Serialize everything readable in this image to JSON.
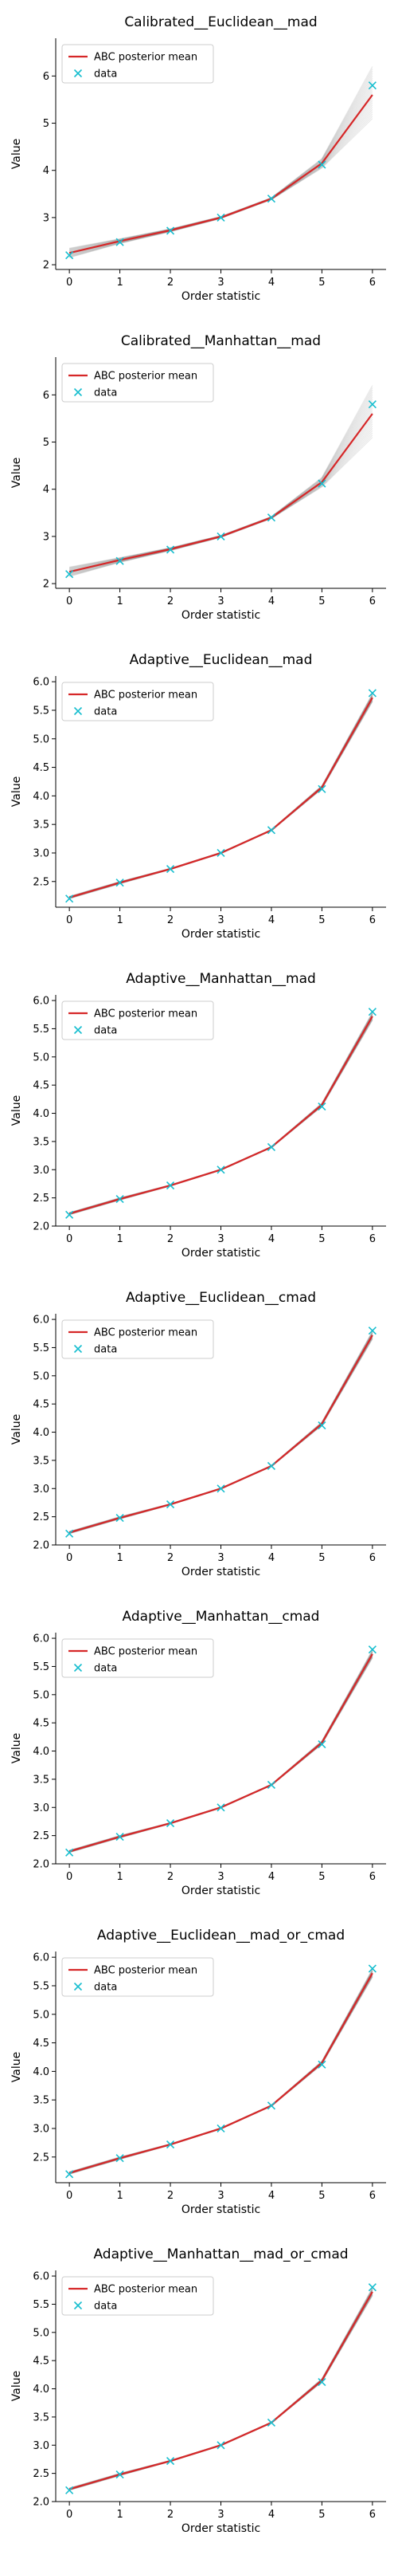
{
  "chart_data": [
    {
      "type": "line",
      "title": "Calibrated__Euclidean__mad",
      "xlabel": "Order statistic",
      "ylabel": "Value",
      "x": [
        0,
        1,
        2,
        3,
        4,
        5,
        6
      ],
      "xticks": [
        "0",
        "1",
        "2",
        "3",
        "4",
        "5",
        "6"
      ],
      "ylim": [
        1.9,
        6.8
      ],
      "yticks": [
        "2",
        "3",
        "4",
        "5",
        "6"
      ],
      "legend_position": "upper-left",
      "series": [
        {
          "name": "ABC posterior mean",
          "kind": "line",
          "color": "#d62728",
          "values": [
            2.25,
            2.5,
            2.73,
            3.0,
            3.4,
            4.15,
            5.6
          ]
        },
        {
          "name": "data",
          "kind": "markers",
          "marker": "x",
          "color": "#17becf",
          "values": [
            2.2,
            2.48,
            2.72,
            3.0,
            3.4,
            4.12,
            5.8
          ]
        }
      ],
      "posterior_band": {
        "color": "#555555",
        "lower": [
          2.15,
          2.45,
          2.7,
          2.98,
          3.38,
          4.05,
          5.1
        ],
        "upper": [
          2.35,
          2.55,
          2.76,
          3.02,
          3.42,
          4.25,
          6.2
        ]
      }
    },
    {
      "type": "line",
      "title": "Calibrated__Manhattan__mad",
      "xlabel": "Order statistic",
      "ylabel": "Value",
      "x": [
        0,
        1,
        2,
        3,
        4,
        5,
        6
      ],
      "xticks": [
        "0",
        "1",
        "2",
        "3",
        "4",
        "5",
        "6"
      ],
      "ylim": [
        1.9,
        6.8
      ],
      "yticks": [
        "2",
        "3",
        "4",
        "5",
        "6"
      ],
      "legend_position": "upper-left",
      "series": [
        {
          "name": "ABC posterior mean",
          "kind": "line",
          "color": "#d62728",
          "values": [
            2.25,
            2.5,
            2.73,
            3.0,
            3.4,
            4.15,
            5.6
          ]
        },
        {
          "name": "data",
          "kind": "markers",
          "marker": "x",
          "color": "#17becf",
          "values": [
            2.2,
            2.48,
            2.72,
            3.0,
            3.4,
            4.12,
            5.8
          ]
        }
      ],
      "posterior_band": {
        "color": "#555555",
        "lower": [
          2.15,
          2.45,
          2.7,
          2.98,
          3.38,
          4.05,
          5.1
        ],
        "upper": [
          2.35,
          2.55,
          2.76,
          3.02,
          3.42,
          4.25,
          6.2
        ]
      }
    },
    {
      "type": "line",
      "title": "Adaptive__Euclidean__mad",
      "xlabel": "Order statistic",
      "ylabel": "Value",
      "x": [
        0,
        1,
        2,
        3,
        4,
        5,
        6
      ],
      "xticks": [
        "0",
        "1",
        "2",
        "3",
        "4",
        "5",
        "6"
      ],
      "ylim": [
        2.05,
        6.1
      ],
      "yticks": [
        "2.5",
        "3.0",
        "3.5",
        "4.0",
        "4.5",
        "5.0",
        "5.5",
        "6.0"
      ],
      "legend_position": "upper-left",
      "series": [
        {
          "name": "ABC posterior mean",
          "kind": "line",
          "color": "#d62728",
          "values": [
            2.22,
            2.48,
            2.72,
            3.0,
            3.4,
            4.15,
            5.72
          ]
        },
        {
          "name": "data",
          "kind": "markers",
          "marker": "x",
          "color": "#17becf",
          "values": [
            2.2,
            2.48,
            2.72,
            3.0,
            3.4,
            4.12,
            5.8
          ]
        }
      ],
      "posterior_band": {
        "color": "#555555",
        "lower": [
          2.2,
          2.46,
          2.71,
          2.99,
          3.39,
          4.12,
          5.65
        ],
        "upper": [
          2.24,
          2.5,
          2.73,
          3.01,
          3.41,
          4.18,
          5.79
        ]
      }
    },
    {
      "type": "line",
      "title": "Adaptive__Manhattan__mad",
      "xlabel": "Order statistic",
      "ylabel": "Value",
      "x": [
        0,
        1,
        2,
        3,
        4,
        5,
        6
      ],
      "xticks": [
        "0",
        "1",
        "2",
        "3",
        "4",
        "5",
        "6"
      ],
      "ylim": [
        2.0,
        6.1
      ],
      "yticks": [
        "2.0",
        "2.5",
        "3.0",
        "3.5",
        "4.0",
        "4.5",
        "5.0",
        "5.5",
        "6.0"
      ],
      "legend_position": "upper-left",
      "series": [
        {
          "name": "ABC posterior mean",
          "kind": "line",
          "color": "#d62728",
          "values": [
            2.22,
            2.48,
            2.72,
            3.0,
            3.4,
            4.15,
            5.72
          ]
        },
        {
          "name": "data",
          "kind": "markers",
          "marker": "x",
          "color": "#17becf",
          "values": [
            2.2,
            2.48,
            2.72,
            3.0,
            3.4,
            4.12,
            5.8
          ]
        }
      ],
      "posterior_band": {
        "color": "#555555",
        "lower": [
          2.2,
          2.46,
          2.71,
          2.99,
          3.39,
          4.12,
          5.65
        ],
        "upper": [
          2.24,
          2.5,
          2.73,
          3.01,
          3.41,
          4.18,
          5.79
        ]
      }
    },
    {
      "type": "line",
      "title": "Adaptive__Euclidean__cmad",
      "xlabel": "Order statistic",
      "ylabel": "Value",
      "x": [
        0,
        1,
        2,
        3,
        4,
        5,
        6
      ],
      "xticks": [
        "0",
        "1",
        "2",
        "3",
        "4",
        "5",
        "6"
      ],
      "ylim": [
        2.0,
        6.1
      ],
      "yticks": [
        "2.0",
        "2.5",
        "3.0",
        "3.5",
        "4.0",
        "4.5",
        "5.0",
        "5.5",
        "6.0"
      ],
      "legend_position": "upper-left",
      "series": [
        {
          "name": "ABC posterior mean",
          "kind": "line",
          "color": "#d62728",
          "values": [
            2.22,
            2.48,
            2.72,
            3.0,
            3.4,
            4.15,
            5.72
          ]
        },
        {
          "name": "data",
          "kind": "markers",
          "marker": "x",
          "color": "#17becf",
          "values": [
            2.2,
            2.48,
            2.72,
            3.0,
            3.4,
            4.12,
            5.8
          ]
        }
      ],
      "posterior_band": {
        "color": "#555555",
        "lower": [
          2.2,
          2.46,
          2.71,
          2.99,
          3.39,
          4.12,
          5.65
        ],
        "upper": [
          2.24,
          2.5,
          2.73,
          3.01,
          3.41,
          4.18,
          5.79
        ]
      }
    },
    {
      "type": "line",
      "title": "Adaptive__Manhattan__cmad",
      "xlabel": "Order statistic",
      "ylabel": "Value",
      "x": [
        0,
        1,
        2,
        3,
        4,
        5,
        6
      ],
      "xticks": [
        "0",
        "1",
        "2",
        "3",
        "4",
        "5",
        "6"
      ],
      "ylim": [
        2.0,
        6.1
      ],
      "yticks": [
        "2.0",
        "2.5",
        "3.0",
        "3.5",
        "4.0",
        "4.5",
        "5.0",
        "5.5",
        "6.0"
      ],
      "legend_position": "upper-left",
      "series": [
        {
          "name": "ABC posterior mean",
          "kind": "line",
          "color": "#d62728",
          "values": [
            2.22,
            2.48,
            2.72,
            3.0,
            3.4,
            4.15,
            5.72
          ]
        },
        {
          "name": "data",
          "kind": "markers",
          "marker": "x",
          "color": "#17becf",
          "values": [
            2.2,
            2.48,
            2.72,
            3.0,
            3.4,
            4.12,
            5.8
          ]
        }
      ],
      "posterior_band": {
        "color": "#555555",
        "lower": [
          2.2,
          2.46,
          2.71,
          2.99,
          3.39,
          4.12,
          5.65
        ],
        "upper": [
          2.24,
          2.5,
          2.73,
          3.01,
          3.41,
          4.18,
          5.79
        ]
      }
    },
    {
      "type": "line",
      "title": "Adaptive__Euclidean__mad_or_cmad",
      "xlabel": "Order statistic",
      "ylabel": "Value",
      "x": [
        0,
        1,
        2,
        3,
        4,
        5,
        6
      ],
      "xticks": [
        "0",
        "1",
        "2",
        "3",
        "4",
        "5",
        "6"
      ],
      "ylim": [
        2.05,
        6.1
      ],
      "yticks": [
        "2.5",
        "3.0",
        "3.5",
        "4.0",
        "4.5",
        "5.0",
        "5.5",
        "6.0"
      ],
      "legend_position": "upper-left",
      "series": [
        {
          "name": "ABC posterior mean",
          "kind": "line",
          "color": "#d62728",
          "values": [
            2.22,
            2.48,
            2.72,
            3.0,
            3.4,
            4.15,
            5.72
          ]
        },
        {
          "name": "data",
          "kind": "markers",
          "marker": "x",
          "color": "#17becf",
          "values": [
            2.2,
            2.48,
            2.72,
            3.0,
            3.4,
            4.12,
            5.8
          ]
        }
      ],
      "posterior_band": {
        "color": "#555555",
        "lower": [
          2.2,
          2.46,
          2.71,
          2.99,
          3.39,
          4.12,
          5.65
        ],
        "upper": [
          2.24,
          2.5,
          2.73,
          3.01,
          3.41,
          4.18,
          5.79
        ]
      }
    },
    {
      "type": "line",
      "title": "Adaptive__Manhattan__mad_or_cmad",
      "xlabel": "Order statistic",
      "ylabel": "Value",
      "x": [
        0,
        1,
        2,
        3,
        4,
        5,
        6
      ],
      "xticks": [
        "0",
        "1",
        "2",
        "3",
        "4",
        "5",
        "6"
      ],
      "ylim": [
        2.0,
        6.1
      ],
      "yticks": [
        "2.0",
        "2.5",
        "3.0",
        "3.5",
        "4.0",
        "4.5",
        "5.0",
        "5.5",
        "6.0"
      ],
      "legend_position": "upper-left",
      "series": [
        {
          "name": "ABC posterior mean",
          "kind": "line",
          "color": "#d62728",
          "values": [
            2.22,
            2.48,
            2.72,
            3.0,
            3.4,
            4.15,
            5.72
          ]
        },
        {
          "name": "data",
          "kind": "markers",
          "marker": "x",
          "color": "#17becf",
          "values": [
            2.2,
            2.48,
            2.72,
            3.0,
            3.4,
            4.12,
            5.8
          ]
        }
      ],
      "posterior_band": {
        "color": "#555555",
        "lower": [
          2.2,
          2.46,
          2.71,
          2.99,
          3.39,
          4.12,
          5.65
        ],
        "upper": [
          2.24,
          2.5,
          2.73,
          3.01,
          3.41,
          4.18,
          5.79
        ]
      }
    }
  ]
}
